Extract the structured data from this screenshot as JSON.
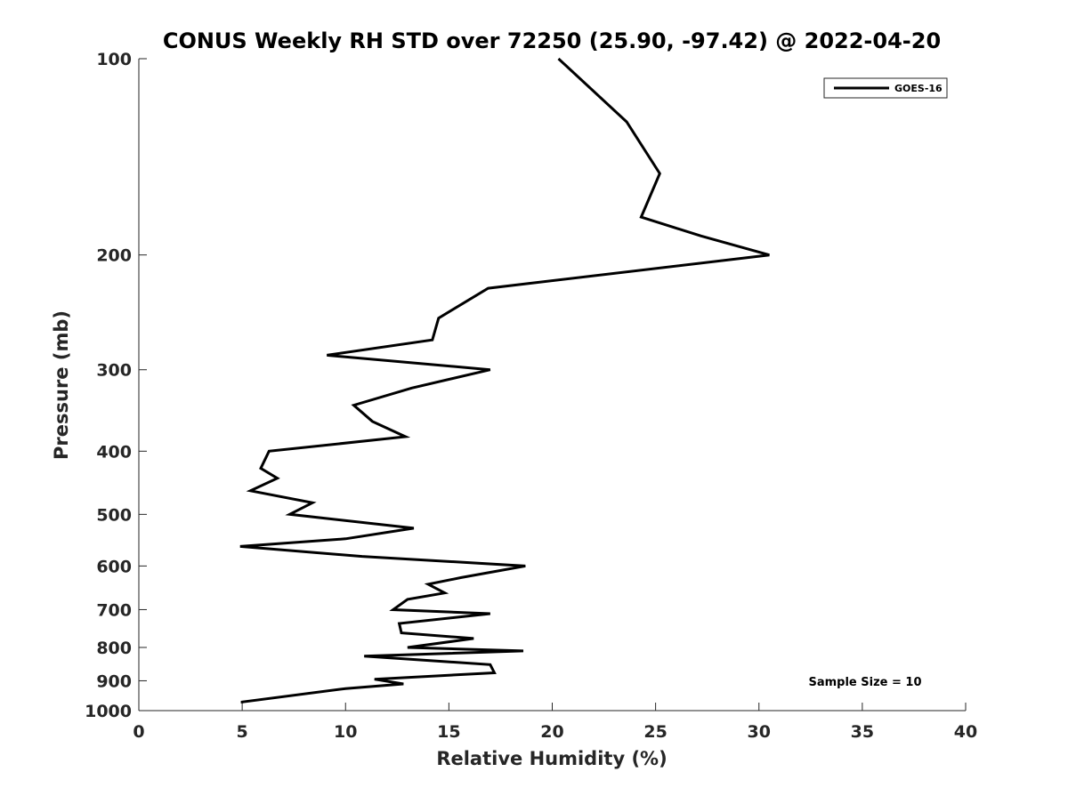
{
  "chart_data": {
    "type": "line",
    "title": "CONUS Weekly RH STD over 72250 (25.90, -97.42) @ 2022-04-20",
    "xlabel": "Relative Humidity (%)",
    "ylabel": "Pressure (mb)",
    "xlim": [
      0,
      40
    ],
    "ylim": [
      100,
      1000
    ],
    "y_scale": "log",
    "y_reversed": true,
    "xticks": [
      0,
      5,
      10,
      15,
      20,
      25,
      30,
      35,
      40
    ],
    "yticks": [
      100,
      200,
      300,
      400,
      500,
      600,
      700,
      800,
      900,
      1000
    ],
    "grid": false,
    "legend": {
      "position": "top-right",
      "entries": [
        "GOES-16"
      ]
    },
    "annotation": "Sample Size = 10",
    "series": [
      {
        "name": "GOES-16",
        "color": "#000000",
        "points": [
          [
            20.3,
            100
          ],
          [
            23.6,
            125
          ],
          [
            25.2,
            150
          ],
          [
            24.3,
            175
          ],
          [
            27.2,
            187
          ],
          [
            30.5,
            200
          ],
          [
            16.9,
            225
          ],
          [
            14.5,
            250
          ],
          [
            14.2,
            270
          ],
          [
            9.1,
            285
          ],
          [
            17.0,
            300
          ],
          [
            13.2,
            320
          ],
          [
            10.4,
            340
          ],
          [
            11.3,
            360
          ],
          [
            12.9,
            380
          ],
          [
            6.3,
            400
          ],
          [
            5.9,
            425
          ],
          [
            6.7,
            440
          ],
          [
            5.4,
            460
          ],
          [
            8.4,
            480
          ],
          [
            7.3,
            500
          ],
          [
            13.3,
            525
          ],
          [
            10.0,
            545
          ],
          [
            4.9,
            560
          ],
          [
            10.8,
            580
          ],
          [
            18.7,
            600
          ],
          [
            15.6,
            625
          ],
          [
            14.0,
            640
          ],
          [
            14.8,
            660
          ],
          [
            13.0,
            675
          ],
          [
            12.3,
            700
          ],
          [
            17.0,
            710
          ],
          [
            12.6,
            735
          ],
          [
            12.7,
            760
          ],
          [
            16.2,
            775
          ],
          [
            13.0,
            800
          ],
          [
            18.6,
            810
          ],
          [
            10.9,
            825
          ],
          [
            17.0,
            850
          ],
          [
            17.2,
            875
          ],
          [
            11.4,
            895
          ],
          [
            12.8,
            910
          ],
          [
            10.0,
            925
          ],
          [
            5.0,
            970
          ],
          [
            5.0,
            975
          ]
        ]
      }
    ]
  }
}
